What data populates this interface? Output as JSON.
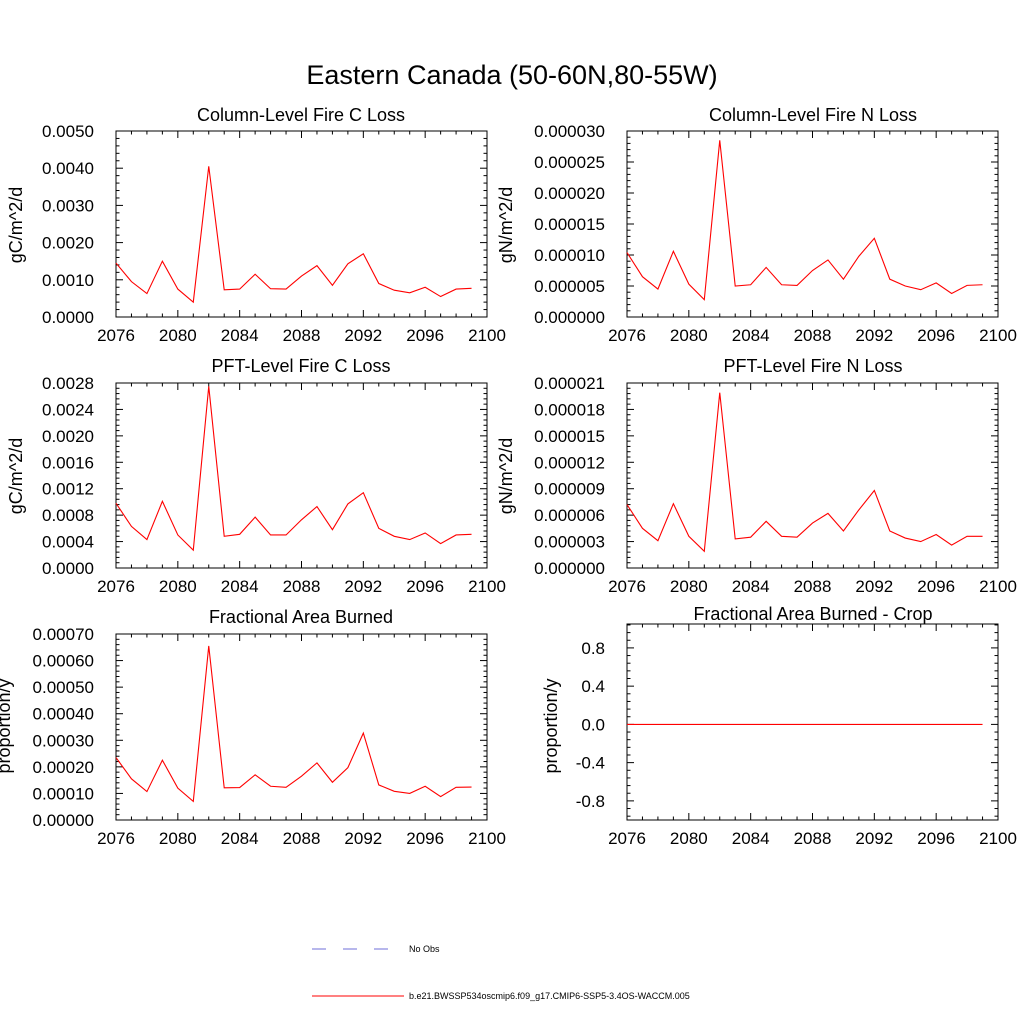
{
  "title": "Eastern Canada (50-60N,80-55W)",
  "colors": {
    "series": "#ff0000",
    "obs": "#6f6fd8",
    "axis": "#000000"
  },
  "legend": {
    "obs_label": "No Obs",
    "model_label": "b.e21.BWSSP534oscmip6.f09_g17.CMIP6-SSP5-3.4OS-WACCM.005"
  },
  "chart_data": [
    {
      "type": "line",
      "title": "Column-Level Fire C Loss",
      "ylabel": "gC/m^2/d",
      "xlim": [
        2076,
        2100
      ],
      "ylim": [
        0,
        0.005
      ],
      "xticks": [
        "2076",
        "2080",
        "2084",
        "2088",
        "2092",
        "2096",
        "2100"
      ],
      "yticks": [
        "0.0000",
        "0.0010",
        "0.0020",
        "0.0030",
        "0.0040",
        "0.0050"
      ],
      "x": [
        2076,
        2077,
        2078,
        2079,
        2080,
        2081,
        2082,
        2083,
        2084,
        2085,
        2086,
        2087,
        2088,
        2089,
        2090,
        2091,
        2092,
        2093,
        2094,
        2095,
        2096,
        2097,
        2098,
        2099
      ],
      "series": [
        {
          "values": [
            0.00145,
            0.00095,
            0.00063,
            0.0015,
            0.00075,
            0.0004,
            0.00405,
            0.00073,
            0.00075,
            0.00115,
            0.00076,
            0.00075,
            0.0011,
            0.00138,
            0.00085,
            0.00143,
            0.0017,
            0.0009,
            0.00072,
            0.00065,
            0.0008,
            0.00055,
            0.00075,
            0.00077
          ]
        }
      ]
    },
    {
      "type": "line",
      "title": "Column-Level Fire N Loss",
      "ylabel": "gN/m^2/d",
      "xlim": [
        2076,
        2100
      ],
      "ylim": [
        0,
        3e-05
      ],
      "xticks": [
        "2076",
        "2080",
        "2084",
        "2088",
        "2092",
        "2096",
        "2100"
      ],
      "yticks": [
        "0.000000",
        "0.000005",
        "0.000010",
        "0.000015",
        "0.000020",
        "0.000025",
        "0.000030"
      ],
      "x": [
        2076,
        2077,
        2078,
        2079,
        2080,
        2081,
        2082,
        2083,
        2084,
        2085,
        2086,
        2087,
        2088,
        2089,
        2090,
        2091,
        2092,
        2093,
        2094,
        2095,
        2096,
        2097,
        2098,
        2099
      ],
      "series": [
        {
          "values": [
            1.04e-05,
            6.5e-06,
            4.5e-06,
            1.06e-05,
            5.3e-06,
            2.8e-06,
            2.85e-05,
            5e-06,
            5.2e-06,
            8e-06,
            5.2e-06,
            5.1e-06,
            7.5e-06,
            9.2e-06,
            6.1e-06,
            9.8e-06,
            1.27e-05,
            6.1e-06,
            5e-06,
            4.4e-06,
            5.5e-06,
            3.8e-06,
            5.1e-06,
            5.2e-06
          ]
        }
      ]
    },
    {
      "type": "line",
      "title": "PFT-Level Fire C Loss",
      "ylabel": "gC/m^2/d",
      "xlim": [
        2076,
        2100
      ],
      "ylim": [
        0,
        0.0028
      ],
      "xticks": [
        "2076",
        "2080",
        "2084",
        "2088",
        "2092",
        "2096",
        "2100"
      ],
      "yticks": [
        "0.0000",
        "0.0004",
        "0.0008",
        "0.0012",
        "0.0016",
        "0.0020",
        "0.0024",
        "0.0028"
      ],
      "x": [
        2076,
        2077,
        2078,
        2079,
        2080,
        2081,
        2082,
        2083,
        2084,
        2085,
        2086,
        2087,
        2088,
        2089,
        2090,
        2091,
        2092,
        2093,
        2094,
        2095,
        2096,
        2097,
        2098,
        2099
      ],
      "series": [
        {
          "values": [
            0.00098,
            0.00063,
            0.00043,
            0.00101,
            0.0005,
            0.00027,
            0.00275,
            0.00048,
            0.00051,
            0.00077,
            0.0005,
            0.0005,
            0.00073,
            0.00093,
            0.00058,
            0.00097,
            0.00114,
            0.0006,
            0.00048,
            0.00043,
            0.00053,
            0.00037,
            0.0005,
            0.00051
          ]
        }
      ]
    },
    {
      "type": "line",
      "title": "PFT-Level Fire N Loss",
      "ylabel": "gN/m^2/d",
      "xlim": [
        2076,
        2100
      ],
      "ylim": [
        0,
        2.1e-05
      ],
      "xticks": [
        "2076",
        "2080",
        "2084",
        "2088",
        "2092",
        "2096",
        "2100"
      ],
      "yticks": [
        "0.000000",
        "0.000003",
        "0.000006",
        "0.000009",
        "0.000012",
        "0.000015",
        "0.000018",
        "0.000021"
      ],
      "x": [
        2076,
        2077,
        2078,
        2079,
        2080,
        2081,
        2082,
        2083,
        2084,
        2085,
        2086,
        2087,
        2088,
        2089,
        2090,
        2091,
        2092,
        2093,
        2094,
        2095,
        2096,
        2097,
        2098,
        2099
      ],
      "series": [
        {
          "values": [
            7.2e-06,
            4.5e-06,
            3.1e-06,
            7.3e-06,
            3.6e-06,
            1.9e-06,
            1.99e-05,
            3.3e-06,
            3.5e-06,
            5.3e-06,
            3.6e-06,
            3.5e-06,
            5.1e-06,
            6.2e-06,
            4.2e-06,
            6.6e-06,
            8.8e-06,
            4.2e-06,
            3.4e-06,
            3e-06,
            3.8e-06,
            2.6e-06,
            3.6e-06,
            3.6e-06
          ]
        }
      ]
    },
    {
      "type": "line",
      "title": "Fractional Area Burned",
      "ylabel": "proportion/y",
      "xlim": [
        2076,
        2100
      ],
      "ylim": [
        0,
        0.0007
      ],
      "xticks": [
        "2076",
        "2080",
        "2084",
        "2088",
        "2092",
        "2096",
        "2100"
      ],
      "yticks": [
        "0.00000",
        "0.00010",
        "0.00020",
        "0.00030",
        "0.00040",
        "0.00050",
        "0.00060",
        "0.00070"
      ],
      "x": [
        2076,
        2077,
        2078,
        2079,
        2080,
        2081,
        2082,
        2083,
        2084,
        2085,
        2086,
        2087,
        2088,
        2089,
        2090,
        2091,
        2092,
        2093,
        2094,
        2095,
        2096,
        2097,
        2098,
        2099
      ],
      "series": [
        {
          "values": [
            0.000235,
            0.000155,
            0.000107,
            0.000225,
            0.00012,
            7e-05,
            0.000655,
            0.000121,
            0.000122,
            0.00017,
            0.000127,
            0.000123,
            0.000165,
            0.000215,
            0.000142,
            0.000197,
            0.000327,
            0.000132,
            0.000108,
            0.0001,
            0.000127,
            8.8e-05,
            0.000123,
            0.000124
          ]
        }
      ]
    },
    {
      "type": "line",
      "title": "Fractional Area Burned - Crop",
      "ylabel": "proportion/y",
      "xlim": [
        2076,
        2100
      ],
      "ylim": [
        -1.0,
        1.05
      ],
      "xticks": [
        "2076",
        "2080",
        "2084",
        "2088",
        "2092",
        "2096",
        "2100"
      ],
      "yticks": [
        "-0.8",
        "-0.4",
        "0.0",
        "0.4",
        "0.8"
      ],
      "x": [
        2076,
        2077,
        2078,
        2079,
        2080,
        2081,
        2082,
        2083,
        2084,
        2085,
        2086,
        2087,
        2088,
        2089,
        2090,
        2091,
        2092,
        2093,
        2094,
        2095,
        2096,
        2097,
        2098,
        2099
      ],
      "series": [
        {
          "values": [
            0,
            0,
            0,
            0,
            0,
            0,
            0,
            0,
            0,
            0,
            0,
            0,
            0,
            0,
            0,
            0,
            0,
            0,
            0,
            0,
            0,
            0,
            0,
            0
          ]
        }
      ]
    }
  ]
}
